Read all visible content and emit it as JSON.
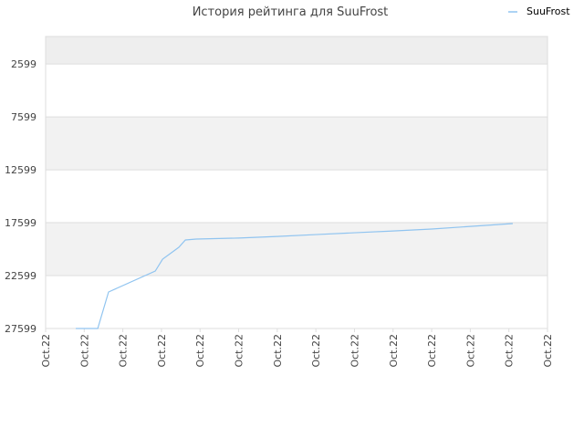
{
  "chart_data": {
    "type": "line",
    "title": "История рейтинга для SuuFrost",
    "x": [
      0.78,
      1.35,
      1.63,
      2.84,
      3.03,
      3.45,
      3.62,
      3.9,
      5.0,
      6.0,
      7.0,
      8.0,
      9.0,
      10.0,
      11.0,
      12.1
    ],
    "series": [
      {
        "name": "SuuFrost",
        "color": "#90c4f0",
        "values": [
          27599,
          27599,
          24150,
          22166,
          21045,
          19924,
          19234,
          19148,
          19050,
          18900,
          18720,
          18550,
          18380,
          18200,
          17950,
          17681
        ]
      }
    ],
    "xlim": [
      0,
      13
    ],
    "xticks": [
      {
        "value": 0,
        "label": "Oct.22"
      },
      {
        "value": 1,
        "label": "Oct.22"
      },
      {
        "value": 2,
        "label": "Oct.22"
      },
      {
        "value": 3,
        "label": "Oct.22"
      },
      {
        "value": 4,
        "label": "Oct.22"
      },
      {
        "value": 5,
        "label": "Oct.22"
      },
      {
        "value": 6,
        "label": "Oct.22"
      },
      {
        "value": 7,
        "label": "Oct.22"
      },
      {
        "value": 8,
        "label": "Oct.22"
      },
      {
        "value": 9,
        "label": "Oct.22"
      },
      {
        "value": 10,
        "label": "Oct.22"
      },
      {
        "value": 11,
        "label": "Oct.22"
      },
      {
        "value": 12,
        "label": "Oct.22"
      },
      {
        "value": 13,
        "label": "Oct.22"
      }
    ],
    "ylim": [
      27599,
      0
    ],
    "yticks": [
      2599,
      7599,
      12599,
      17599,
      22599,
      27599
    ],
    "grid": true,
    "legend": "top-right"
  }
}
